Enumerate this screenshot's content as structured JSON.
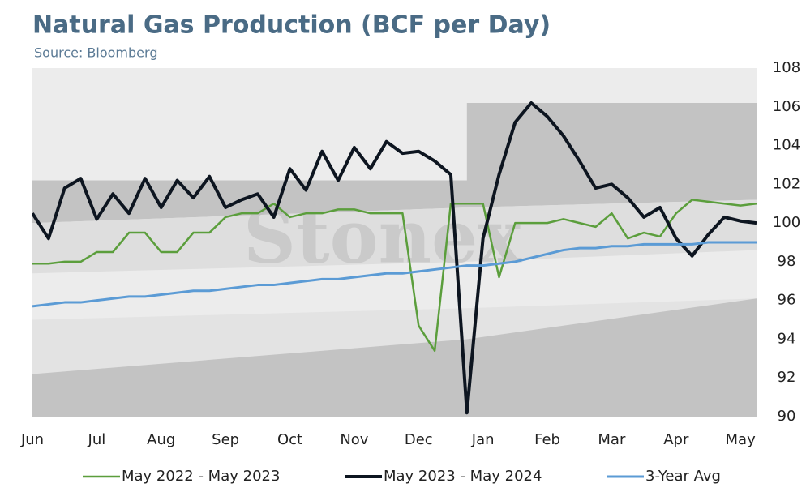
{
  "chart_data": {
    "type": "line",
    "title": "Natural Gas Production (BCF per Day)",
    "subtitle": "Source: Bloomberg",
    "watermark": "Stonex",
    "categories": [
      "Jun",
      null,
      null,
      null,
      "Jul",
      null,
      null,
      null,
      "Aug",
      null,
      null,
      null,
      "Sep",
      null,
      null,
      null,
      "Oct",
      null,
      null,
      null,
      "Nov",
      null,
      null,
      null,
      "Dec",
      null,
      null,
      null,
      "Jan",
      null,
      null,
      null,
      "Feb",
      null,
      null,
      null,
      "Mar",
      null,
      null,
      null,
      "Apr",
      null,
      null,
      null,
      "May",
      null
    ],
    "series": [
      {
        "name": "May 2022 - May 2023",
        "color": "#5b9e3c",
        "width": 2.5,
        "values": [
          97.9,
          97.9,
          98.0,
          98.0,
          98.5,
          98.5,
          99.5,
          99.5,
          98.5,
          98.5,
          99.5,
          99.5,
          100.3,
          100.5,
          100.5,
          101.0,
          100.3,
          100.5,
          100.5,
          100.7,
          100.7,
          100.5,
          100.5,
          100.5,
          94.7,
          93.4,
          101.0,
          101.0,
          101.0,
          97.2,
          100.0,
          100.0,
          100.0,
          100.2,
          100.0,
          99.8,
          100.5,
          99.2,
          99.5,
          99.3,
          100.5,
          101.2,
          101.1,
          101.0,
          100.9,
          101.0
        ]
      },
      {
        "name": "May 2023 - May 2024",
        "color": "#0d1520",
        "width": 4,
        "values": [
          100.5,
          99.2,
          101.8,
          102.3,
          100.2,
          101.5,
          100.5,
          102.3,
          100.8,
          102.2,
          101.3,
          102.4,
          100.8,
          101.2,
          101.5,
          100.3,
          102.8,
          101.7,
          103.7,
          102.2,
          103.9,
          102.8,
          104.2,
          103.6,
          103.7,
          103.2,
          102.5,
          90.2,
          99.2,
          102.5,
          105.2,
          106.2,
          105.5,
          104.5,
          103.2,
          101.8,
          102.0,
          101.3,
          100.3,
          100.8,
          99.2,
          98.3,
          99.4,
          100.3,
          100.1,
          100.0
        ]
      },
      {
        "name": "3-Year Avg",
        "color": "#5b9bd5",
        "width": 3,
        "values": [
          95.7,
          95.8,
          95.9,
          95.9,
          96.0,
          96.1,
          96.2,
          96.2,
          96.3,
          96.4,
          96.5,
          96.5,
          96.6,
          96.7,
          96.8,
          96.8,
          96.9,
          97.0,
          97.1,
          97.1,
          97.2,
          97.3,
          97.4,
          97.4,
          97.5,
          97.6,
          97.7,
          97.8,
          97.8,
          97.9,
          98.0,
          98.2,
          98.4,
          98.6,
          98.7,
          98.7,
          98.8,
          98.8,
          98.9,
          98.9,
          98.9,
          98.9,
          99.0,
          99.0,
          99.0,
          99.0
        ]
      }
    ],
    "bands": [
      {
        "color": "#c3c3c3",
        "x": [
          0,
          27,
          27,
          45
        ],
        "upper": [
          102.2,
          102.2,
          106.2,
          106.2
        ],
        "lower": [
          100.0,
          100.8,
          100.8,
          101.2
        ]
      },
      {
        "color": "#dedede",
        "x": [
          0,
          27,
          27,
          45
        ],
        "upper": [
          100.0,
          100.8,
          100.8,
          101.2
        ],
        "lower": [
          97.4,
          98.0,
          98.0,
          98.6
        ]
      },
      {
        "color": "#e3e3e3",
        "x": [
          0,
          27,
          27,
          45
        ],
        "upper": [
          95.0,
          95.6,
          95.6,
          96.1
        ],
        "lower": [
          92.2,
          94.0,
          94.0,
          96.1
        ]
      },
      {
        "color": "#c3c3c3",
        "x": [
          0,
          27,
          27,
          45
        ],
        "upper": [
          92.2,
          94.0,
          94.0,
          96.1
        ],
        "lower": [
          90,
          90,
          90,
          90
        ]
      }
    ],
    "ylim": [
      90,
      108
    ],
    "yticks": [
      90,
      92,
      94,
      96,
      98,
      100,
      102,
      104,
      106,
      108
    ],
    "y_axis_side": "right",
    "grid": false,
    "legend": "bottom"
  }
}
